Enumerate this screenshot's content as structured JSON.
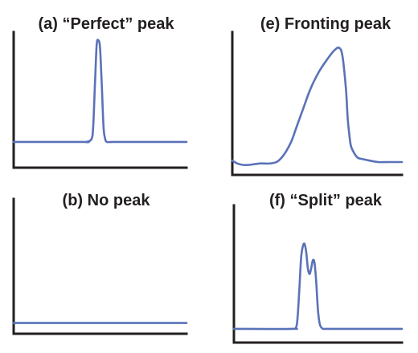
{
  "figure": {
    "line_color": "#5a72b8",
    "axis_color": "#231f20"
  },
  "chart_data": [
    {
      "type": "line",
      "title": "(a) “Perfect” peak",
      "xlabel": "",
      "ylabel": "",
      "xlim": [
        0,
        100
      ],
      "ylim": [
        0,
        100
      ],
      "grid": false,
      "series": [
        {
          "x": [
            0,
            40,
            42,
            45,
            46,
            47,
            48,
            49,
            50,
            51,
            52,
            53,
            54,
            57,
            60,
            100
          ],
          "values": [
            19,
            19,
            19,
            21,
            30,
            60,
            90,
            94,
            88,
            60,
            30,
            21,
            19,
            19,
            19,
            19
          ]
        }
      ]
    },
    {
      "type": "line",
      "title": "(e) Fronting peak",
      "xlabel": "",
      "ylabel": "",
      "xlim": [
        0,
        100
      ],
      "ylim": [
        0,
        100
      ],
      "grid": false,
      "series": [
        {
          "x": [
            0,
            3,
            6,
            10,
            16,
            22,
            26,
            29,
            32,
            35,
            38,
            42,
            46,
            51,
            56,
            60,
            63,
            65,
            67,
            68,
            69,
            70,
            72,
            74,
            77,
            81,
            86,
            92,
            100
          ],
          "values": [
            10,
            8,
            7,
            7,
            8,
            8,
            9,
            12,
            17,
            24,
            34,
            47,
            60,
            72,
            81,
            87,
            89,
            83,
            60,
            40,
            28,
            20,
            15,
            12,
            11,
            10,
            9,
            9,
            9
          ]
        }
      ]
    },
    {
      "type": "line",
      "title": "(b) No peak",
      "xlabel": "",
      "ylabel": "",
      "xlim": [
        0,
        100
      ],
      "ylim": [
        0,
        100
      ],
      "grid": false,
      "series": [
        {
          "x": [
            0,
            100
          ],
          "values": [
            8,
            8
          ]
        }
      ]
    },
    {
      "type": "line",
      "title": "(f) “Split” peak",
      "xlabel": "",
      "ylabel": "",
      "xlim": [
        0,
        100
      ],
      "ylim": [
        0,
        100
      ],
      "grid": false,
      "series": [
        {
          "x": [
            0,
            34,
            37,
            38,
            39,
            40,
            41,
            42,
            43,
            44,
            45,
            46,
            47,
            48,
            49,
            50,
            51,
            52,
            53,
            54,
            56,
            60,
            100
          ],
          "values": [
            10,
            10,
            11,
            20,
            40,
            62,
            70,
            72,
            66,
            54,
            50,
            54,
            60,
            58,
            44,
            24,
            14,
            11,
            10,
            10,
            10,
            10,
            10
          ]
        }
      ]
    }
  ]
}
